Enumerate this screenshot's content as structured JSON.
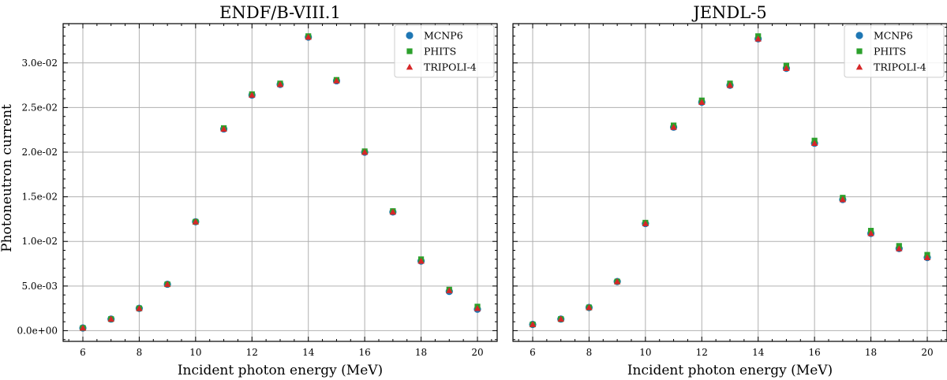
{
  "chart_data": [
    {
      "type": "scatter",
      "title": "ENDF/B-VIII.1",
      "xlabel": "Incident photon energy (MeV)",
      "ylabel": "Photoneutron current",
      "xlim": [
        5.3,
        20.7
      ],
      "ylim": [
        -0.0012,
        0.0344
      ],
      "xticks": [
        6,
        8,
        10,
        12,
        14,
        16,
        18,
        20
      ],
      "yticks": [
        0.0,
        0.005,
        0.01,
        0.015,
        0.02,
        0.025,
        0.03
      ],
      "ytick_labels": [
        "0.0e+00",
        "5.0e-03",
        "1.0e-02",
        "1.5e-02",
        "2.0e-02",
        "2.5e-02",
        "3.0e-02"
      ],
      "grid": true,
      "legend_position": "top-right",
      "x": [
        6,
        7,
        8,
        9,
        10,
        11,
        12,
        13,
        14,
        15,
        16,
        17,
        18,
        19,
        20
      ],
      "series": [
        {
          "name": "MCNP6",
          "marker": "circle",
          "color": "#1f77b4",
          "values": [
            0.0003,
            0.0013,
            0.0025,
            0.0052,
            0.0122,
            0.0226,
            0.0264,
            0.0276,
            0.0329,
            0.028,
            0.02,
            0.0133,
            0.0078,
            0.0044,
            0.0024
          ]
        },
        {
          "name": "PHITS",
          "marker": "square",
          "color": "#2ca02c",
          "values": [
            0.0003,
            0.0013,
            0.0025,
            0.0052,
            0.0122,
            0.0227,
            0.0265,
            0.0277,
            0.033,
            0.0281,
            0.0201,
            0.0134,
            0.008,
            0.0046,
            0.0027
          ]
        },
        {
          "name": "TRIPOLI-4",
          "marker": "triangle",
          "color": "#d62728",
          "values": [
            0.0003,
            0.0013,
            0.0025,
            0.0052,
            0.0122,
            0.0226,
            0.0264,
            0.0276,
            0.0329,
            0.028,
            0.02,
            0.0133,
            0.0078,
            0.0045,
            0.0025
          ]
        }
      ]
    },
    {
      "type": "scatter",
      "title": "JENDL-5",
      "xlabel": "Incident photon energy (MeV)",
      "ylabel": "",
      "xlim": [
        5.3,
        20.7
      ],
      "ylim": [
        -0.0012,
        0.0344
      ],
      "xticks": [
        6,
        8,
        10,
        12,
        14,
        16,
        18,
        20
      ],
      "yticks": [
        0.0,
        0.005,
        0.01,
        0.015,
        0.02,
        0.025,
        0.03
      ],
      "ytick_labels": [],
      "grid": true,
      "legend_position": "top-right",
      "x": [
        6,
        7,
        8,
        9,
        10,
        11,
        12,
        13,
        14,
        15,
        16,
        17,
        18,
        19,
        20
      ],
      "series": [
        {
          "name": "MCNP6",
          "marker": "circle",
          "color": "#1f77b4",
          "values": [
            0.0007,
            0.0013,
            0.0026,
            0.0055,
            0.012,
            0.0228,
            0.0256,
            0.0275,
            0.0327,
            0.0294,
            0.021,
            0.0147,
            0.0109,
            0.0092,
            0.0082
          ]
        },
        {
          "name": "PHITS",
          "marker": "square",
          "color": "#2ca02c",
          "values": [
            0.0007,
            0.0013,
            0.0026,
            0.0055,
            0.0121,
            0.023,
            0.0258,
            0.0277,
            0.033,
            0.0297,
            0.0213,
            0.0149,
            0.0112,
            0.0095,
            0.0085
          ]
        },
        {
          "name": "TRIPOLI-4",
          "marker": "triangle",
          "color": "#d62728",
          "values": [
            0.0007,
            0.0013,
            0.0026,
            0.0055,
            0.012,
            0.0228,
            0.0256,
            0.0275,
            0.0327,
            0.0294,
            0.021,
            0.0147,
            0.0109,
            0.0092,
            0.0082
          ]
        }
      ]
    }
  ]
}
